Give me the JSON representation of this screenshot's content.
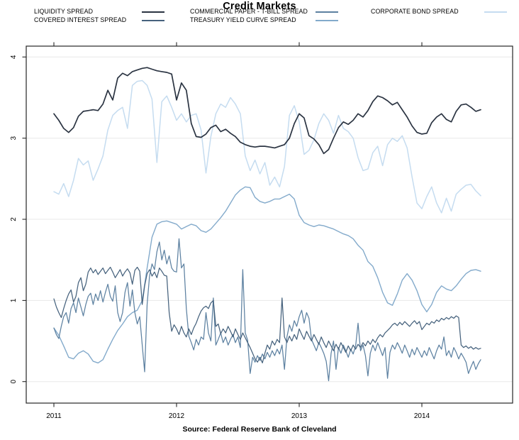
{
  "title": "Credit Markets",
  "source": "Source: Federal Reserve Bank of Cleveland",
  "chart_data": {
    "type": "line",
    "title": "Credit Markets",
    "xlabel": "",
    "ylabel": "",
    "xlim": [
      2010.78,
      2014.9
    ],
    "ylim": [
      -0.4,
      4.4
    ],
    "x_ticks": [
      2011,
      2012,
      2013,
      2014
    ],
    "x_tick_labels": [
      "2011",
      "2012",
      "2013",
      "2014"
    ],
    "y_ticks": [
      0,
      1,
      2,
      3,
      4
    ],
    "y_tick_labels": [
      "0",
      "1",
      "2",
      "3",
      "4"
    ],
    "grid": "horizontal-only",
    "gridline_color": "#e8e8e8",
    "axis_color": "#262626",
    "legend_position": "top",
    "series": [
      {
        "name": "LIQUIDITY SPREAD",
        "color": "#2b3442",
        "line_width": 1.7,
        "t_start": 2011.0,
        "t_step": 0.04,
        "values": [
          3.3,
          3.22,
          3.12,
          3.07,
          3.13,
          3.27,
          3.33,
          3.34,
          3.35,
          3.34,
          3.42,
          3.59,
          3.47,
          3.74,
          3.8,
          3.77,
          3.82,
          3.84,
          3.86,
          3.87,
          3.85,
          3.83,
          3.82,
          3.81,
          3.79,
          3.47,
          3.68,
          3.59,
          3.18,
          3.02,
          3.01,
          3.05,
          3.13,
          3.16,
          3.08,
          3.11,
          3.06,
          3.02,
          2.95,
          2.92,
          2.9,
          2.89,
          2.9,
          2.9,
          2.89,
          2.88,
          2.9,
          2.92,
          3.0,
          3.18,
          3.3,
          3.25,
          3.03,
          2.99,
          2.92,
          2.81,
          2.86,
          3.0,
          3.13,
          3.2,
          3.17,
          3.22,
          3.3,
          3.26,
          3.34,
          3.45,
          3.52,
          3.5,
          3.46,
          3.41,
          3.44,
          3.35,
          3.26,
          3.15,
          3.07,
          3.05,
          3.06,
          3.19,
          3.26,
          3.3,
          3.23,
          3.2,
          3.33,
          3.41,
          3.42,
          3.38,
          3.33,
          3.35
        ]
      },
      {
        "name": "COVERED INTEREST SPREAD",
        "color": "#46627d",
        "line_width": 1.25,
        "t_start": 2011.0,
        "t_step": 0.02,
        "values": [
          1.02,
          0.92,
          0.85,
          0.79,
          0.9,
          1.0,
          1.08,
          1.13,
          0.98,
          1.05,
          1.22,
          1.28,
          1.12,
          1.2,
          1.35,
          1.4,
          1.34,
          1.38,
          1.32,
          1.36,
          1.4,
          1.33,
          1.37,
          1.41,
          1.35,
          1.28,
          1.33,
          1.38,
          1.3,
          1.35,
          1.39,
          1.34,
          1.2,
          1.37,
          1.41,
          1.36,
          0.95,
          1.18,
          1.33,
          1.38,
          1.3,
          1.35,
          1.28,
          1.4,
          1.36,
          1.31,
          1.3,
          0.85,
          0.62,
          0.7,
          0.65,
          0.58,
          0.68,
          0.6,
          0.55,
          0.65,
          0.58,
          0.66,
          0.72,
          0.8,
          0.87,
          0.91,
          0.93,
          0.9,
          0.97,
          1.0,
          0.68,
          0.71,
          0.59,
          0.65,
          0.6,
          0.68,
          0.62,
          0.55,
          0.65,
          0.58,
          0.52,
          0.6,
          0.54,
          0.48,
          0.42,
          0.35,
          0.28,
          0.24,
          0.3,
          0.23,
          0.35,
          0.45,
          0.4,
          0.5,
          0.45,
          0.52,
          0.48,
          1.03,
          0.55,
          0.48,
          0.56,
          0.5,
          0.58,
          0.52,
          0.65,
          0.58,
          0.52,
          0.62,
          0.56,
          0.5,
          0.58,
          0.52,
          0.46,
          0.55,
          0.48,
          0.42,
          0.5,
          0.44,
          0.38,
          0.46,
          0.4,
          0.48,
          0.42,
          0.36,
          0.44,
          0.38,
          0.45,
          0.4,
          0.46,
          0.42,
          0.48,
          0.44,
          0.5,
          0.46,
          0.52,
          0.48,
          0.54,
          0.58,
          0.55,
          0.6,
          0.63,
          0.66,
          0.7,
          0.72,
          0.69,
          0.73,
          0.7,
          0.74,
          0.71,
          0.68,
          0.72,
          0.75,
          0.71,
          0.74,
          0.64,
          0.68,
          0.72,
          0.7,
          0.74,
          0.72,
          0.76,
          0.74,
          0.78,
          0.76,
          0.79,
          0.77,
          0.8,
          0.78,
          0.81,
          0.79,
          0.45,
          0.42,
          0.44,
          0.41,
          0.43,
          0.4,
          0.42,
          0.4,
          0.41
        ]
      },
      {
        "name": "COMMERCIAL PAPER - T-BILL SPREAD",
        "color": "#5d81a1",
        "line_width": 1.25,
        "t_start": 2011.0,
        "t_step": 0.02,
        "values": [
          0.66,
          0.58,
          0.53,
          0.68,
          0.8,
          0.85,
          0.72,
          0.9,
          0.97,
          0.85,
          1.03,
          0.92,
          0.81,
          0.95,
          1.05,
          1.09,
          0.95,
          1.08,
          1.0,
          1.12,
          0.98,
          1.1,
          1.2,
          1.05,
          0.99,
          1.18,
          0.85,
          0.74,
          0.85,
          1.1,
          1.22,
          0.93,
          1.13,
          0.85,
          0.71,
          0.8,
          0.45,
          0.12,
          0.95,
          1.3,
          1.45,
          1.38,
          1.6,
          1.72,
          1.5,
          1.62,
          1.45,
          1.55,
          1.4,
          1.36,
          1.35,
          1.76,
          1.4,
          1.45,
          0.9,
          0.56,
          0.48,
          0.39,
          0.52,
          0.45,
          0.55,
          0.52,
          0.85,
          0.6,
          0.5,
          1.03,
          0.45,
          0.52,
          0.6,
          0.48,
          0.55,
          0.45,
          0.52,
          0.58,
          0.48,
          0.55,
          0.42,
          1.38,
          0.6,
          0.51,
          0.1,
          0.3,
          0.24,
          0.32,
          0.26,
          0.34,
          0.28,
          0.36,
          0.3,
          0.38,
          0.32,
          0.4,
          0.34,
          0.45,
          0.15,
          0.55,
          0.7,
          0.62,
          0.75,
          0.68,
          0.8,
          0.88,
          0.72,
          0.85,
          0.78,
          0.52,
          0.45,
          0.38,
          0.48,
          0.42,
          0.35,
          0.25,
          0.01,
          0.35,
          0.5,
          0.15,
          0.42,
          0.35,
          0.45,
          0.38,
          0.3,
          0.4,
          0.34,
          0.44,
          0.72,
          0.38,
          0.45,
          0.32,
          0.07,
          0.35,
          0.45,
          0.38,
          0.48,
          0.4,
          0.32,
          0.42,
          0.04,
          0.36,
          0.45,
          0.4,
          0.48,
          0.42,
          0.35,
          0.45,
          0.38,
          0.3,
          0.4,
          0.33,
          0.42,
          0.36,
          0.3,
          0.38,
          0.32,
          0.42,
          0.35,
          0.28,
          0.38,
          0.45,
          0.4,
          0.55,
          0.32,
          0.38,
          0.3,
          0.42,
          0.36,
          0.28,
          0.35,
          0.3,
          0.24,
          0.1,
          0.18,
          0.25,
          0.15,
          0.22,
          0.27
        ]
      },
      {
        "name": "TREASURY YIELD CURVE SPREAD",
        "color": "#83aacb",
        "line_width": 1.4,
        "t_start": 2011.0,
        "t_step": 0.04,
        "values": [
          0.66,
          0.57,
          0.44,
          0.3,
          0.28,
          0.35,
          0.38,
          0.34,
          0.25,
          0.23,
          0.27,
          0.4,
          0.52,
          0.63,
          0.71,
          0.8,
          0.85,
          0.88,
          1.0,
          1.4,
          1.78,
          1.94,
          1.97,
          1.98,
          1.96,
          1.94,
          1.88,
          1.91,
          1.94,
          1.92,
          1.86,
          1.84,
          1.88,
          1.95,
          2.02,
          2.1,
          2.2,
          2.3,
          2.36,
          2.4,
          2.39,
          2.27,
          2.22,
          2.2,
          2.22,
          2.25,
          2.25,
          2.28,
          2.31,
          2.25,
          2.05,
          1.96,
          1.93,
          1.91,
          1.93,
          1.92,
          1.9,
          1.88,
          1.85,
          1.82,
          1.8,
          1.76,
          1.68,
          1.62,
          1.48,
          1.42,
          1.28,
          1.1,
          0.97,
          0.94,
          1.08,
          1.25,
          1.33,
          1.25,
          1.12,
          0.95,
          0.86,
          0.95,
          1.1,
          1.18,
          1.14,
          1.12,
          1.18,
          1.26,
          1.33,
          1.37,
          1.38,
          1.36
        ]
      },
      {
        "name": "CORPORATE BOND SPREAD",
        "color": "#c5dcf0",
        "line_width": 1.5,
        "t_start": 2011.0,
        "t_step": 0.04,
        "values": [
          2.34,
          2.31,
          2.44,
          2.28,
          2.48,
          2.75,
          2.67,
          2.72,
          2.48,
          2.62,
          2.78,
          3.1,
          3.28,
          3.34,
          3.38,
          3.12,
          3.65,
          3.7,
          3.71,
          3.65,
          3.48,
          2.7,
          3.45,
          3.52,
          3.38,
          3.22,
          3.3,
          3.2,
          3.28,
          3.3,
          3.1,
          2.57,
          3.02,
          3.3,
          3.42,
          3.38,
          3.5,
          3.42,
          3.3,
          2.78,
          2.6,
          2.73,
          2.56,
          2.7,
          2.42,
          2.52,
          2.4,
          2.65,
          3.28,
          3.4,
          3.2,
          2.8,
          2.85,
          2.98,
          3.18,
          3.3,
          3.22,
          3.06,
          3.28,
          3.12,
          3.08,
          3.0,
          2.76,
          2.6,
          2.62,
          2.82,
          2.9,
          2.66,
          2.92,
          3.0,
          2.96,
          3.03,
          2.88,
          2.52,
          2.2,
          2.13,
          2.28,
          2.4,
          2.2,
          2.08,
          2.26,
          2.1,
          2.31,
          2.37,
          2.42,
          2.43,
          2.35,
          2.29
        ]
      }
    ]
  },
  "legend": {
    "entries": [
      {
        "label": "LIQUIDITY SPREAD",
        "series_index": 0
      },
      {
        "label": "COVERED INTEREST SPREAD",
        "series_index": 1
      },
      {
        "label": "COMMERCIAL PAPER - T-BILL SPREAD",
        "series_index": 2
      },
      {
        "label": "TREASURY YIELD CURVE SPREAD",
        "series_index": 3
      },
      {
        "label": "CORPORATE BOND SPREAD",
        "series_index": 4
      }
    ]
  }
}
